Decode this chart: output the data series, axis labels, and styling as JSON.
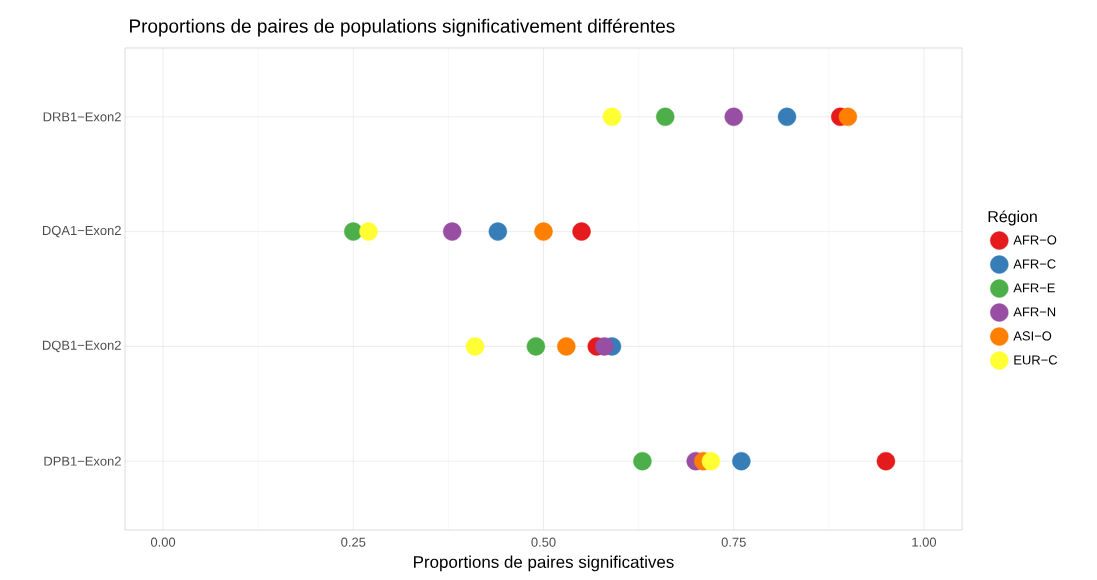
{
  "chart_data": {
    "type": "scatter",
    "orientation": "horizontal",
    "title": "Proportions de paires de populations significativement différentes",
    "xlabel": "Proportions de paires significatives",
    "legend_title": "Région",
    "categories": [
      "DRB1−Exon2",
      "DQA1−Exon2",
      "DQB1−Exon2",
      "DPB1−Exon2"
    ],
    "series": [
      {
        "name": "AFR−O",
        "color": "#e41a1c",
        "values": [
          0.89,
          0.55,
          0.57,
          0.95
        ]
      },
      {
        "name": "AFR−C",
        "color": "#377eb8",
        "values": [
          0.82,
          0.44,
          0.59,
          0.76
        ]
      },
      {
        "name": "AFR−E",
        "color": "#4daf4a",
        "values": [
          0.66,
          0.25,
          0.49,
          0.63
        ]
      },
      {
        "name": "AFR−N",
        "color": "#984ea3",
        "values": [
          0.75,
          0.38,
          0.58,
          0.7
        ]
      },
      {
        "name": "ASI−O",
        "color": "#ff7f00",
        "values": [
          0.9,
          0.5,
          0.53,
          0.71
        ]
      },
      {
        "name": "EUR−C",
        "color": "#ffff33",
        "values": [
          0.59,
          0.27,
          0.41,
          0.72
        ]
      }
    ],
    "xlim": [
      -0.05,
      1.05
    ],
    "xticks": [
      {
        "value": 0,
        "label": "0.00"
      },
      {
        "value": 0.25,
        "label": "0.25"
      },
      {
        "value": 0.5,
        "label": "0.50"
      },
      {
        "value": 0.75,
        "label": "0.75"
      },
      {
        "value": 1,
        "label": "1.00"
      }
    ],
    "grid": true,
    "legend": "right",
    "marker": "circle"
  }
}
